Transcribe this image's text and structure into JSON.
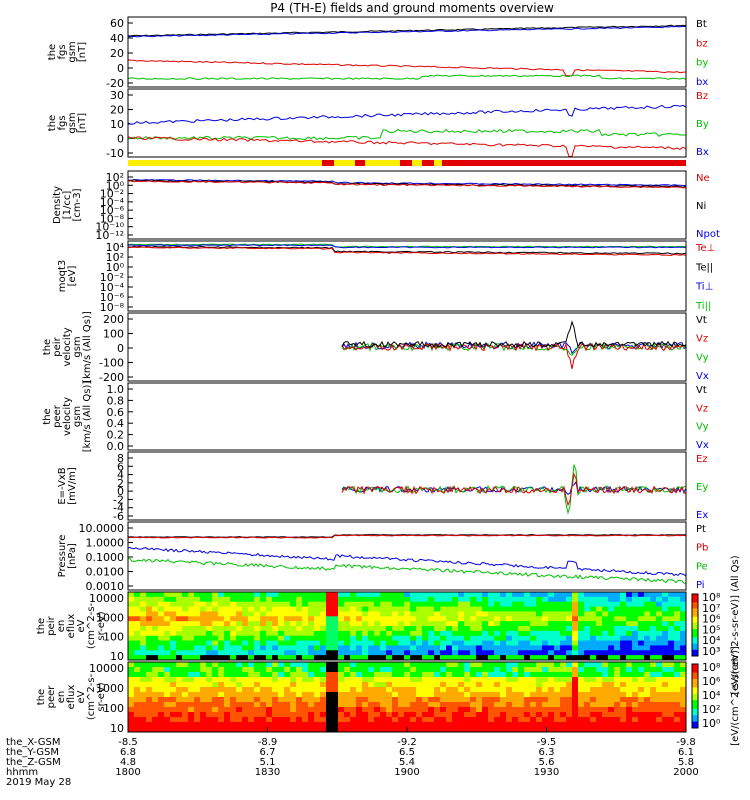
{
  "title": "P4 (TH-E) fields and ground moments overview",
  "chart_data": {
    "type": "line",
    "x_time": [
      "1800",
      "1830",
      "1900",
      "1930",
      "2000"
    ],
    "date": "2019 May 28",
    "ephem": {
      "labels": [
        "the_X-GSM",
        "the_Y-GSM",
        "the_Z-GSM",
        "hhmm"
      ],
      "X": [
        "-8.5",
        "-8.9",
        "-9.2",
        "-9.5",
        "-9.8"
      ],
      "Y": [
        "6.8",
        "6.7",
        "6.5",
        "6.3",
        "6.1"
      ],
      "Z": [
        "4.8",
        "5.1",
        "5.4",
        "5.6",
        "5.8"
      ]
    },
    "panels": [
      {
        "id": "fgs-gsm",
        "ylabel": [
          "the",
          "fgs",
          "gsm",
          "[nT]"
        ],
        "yticks": [
          "60",
          "40",
          "20",
          "0",
          "-20"
        ],
        "legend": [
          {
            "t": "Bt",
            "c": "#000000"
          },
          {
            "t": "bz",
            "c": "#e00000"
          },
          {
            "t": "by",
            "c": "#00c000"
          },
          {
            "t": "bx",
            "c": "#0000e0"
          }
        ]
      },
      {
        "id": "fgs-gse",
        "ylabel": [
          "the",
          "fgs",
          "gsm",
          "[nT]"
        ],
        "yticks": [
          "30",
          "20",
          "10",
          "0",
          "-10"
        ],
        "legend": [
          {
            "t": "Bz",
            "c": "#e00000"
          },
          {
            "t": "By",
            "c": "#00c000"
          },
          {
            "t": "Bx",
            "c": "#0000e0"
          }
        ]
      },
      {
        "id": "density",
        "ylabel": [
          "Density",
          "[1/cc]",
          "[cm-3]"
        ],
        "yticks": [
          "10²",
          "10⁰",
          "10⁻²",
          "10⁻⁴",
          "10⁻⁶",
          "10⁻⁸",
          "10⁻¹⁰",
          "10⁻¹²"
        ],
        "legend": [
          {
            "t": "Ne",
            "c": "#e00000"
          },
          {
            "t": "Ni",
            "c": "#000000"
          },
          {
            "t": "Npot",
            "c": "#0000e0"
          }
        ]
      },
      {
        "id": "temperature",
        "ylabel": [
          "moqt3",
          "[eV]"
        ],
        "yticks": [
          "10⁴",
          "10²",
          "10⁰",
          "10⁻²",
          "10⁻⁴",
          "10⁻⁶",
          "10⁻⁸"
        ],
        "legend": [
          {
            "t": "Te⊥",
            "c": "#e00000"
          },
          {
            "t": "Te||",
            "c": "#000000"
          },
          {
            "t": "Ti⊥",
            "c": "#0000e0"
          },
          {
            "t": "Ti||",
            "c": "#00c000"
          }
        ]
      },
      {
        "id": "peir-vel",
        "ylabel": [
          "the",
          "peir",
          "velocity",
          "gsm",
          "[km/s (All Qs)]"
        ],
        "yticks": [
          "200",
          "100",
          "0",
          "-100",
          "-200"
        ],
        "legend": [
          {
            "t": "Vt",
            "c": "#000000"
          },
          {
            "t": "Vz",
            "c": "#e00000"
          },
          {
            "t": "Vy",
            "c": "#00c000"
          },
          {
            "t": "Vx",
            "c": "#0000e0"
          }
        ]
      },
      {
        "id": "peer-vel",
        "ylabel": [
          "the",
          "peer",
          "velocity",
          "gsm",
          "[km/s (All Qs)]"
        ],
        "yticks": [
          "1.0",
          "0.8",
          "0.6",
          "0.4",
          "0.2",
          "0.0"
        ],
        "legend": [
          {
            "t": "Vt",
            "c": "#000000"
          },
          {
            "t": "Vz",
            "c": "#e00000"
          },
          {
            "t": "Vy",
            "c": "#00c000"
          },
          {
            "t": "Vx",
            "c": "#0000e0"
          }
        ]
      },
      {
        "id": "efield",
        "ylabel": [
          "E=-VxB",
          "[mV/m]"
        ],
        "yticks": [
          "8",
          "6",
          "4",
          "2",
          "0",
          "-2",
          "-4",
          "-6"
        ],
        "legend": [
          {
            "t": "Ez",
            "c": "#e00000"
          },
          {
            "t": "Ey",
            "c": "#00c000"
          },
          {
            "t": "Ex",
            "c": "#0000e0"
          }
        ]
      },
      {
        "id": "pressure",
        "ylabel": [
          "Pressure",
          "[nPa]"
        ],
        "yticks": [
          "10.0000",
          "1.0000",
          "0.1000",
          "0.0100",
          "0.0010"
        ],
        "legend": [
          {
            "t": "Pt",
            "c": "#000000"
          },
          {
            "t": "Pb",
            "c": "#e00000"
          },
          {
            "t": "Pe",
            "c": "#00c000"
          },
          {
            "t": "Pi",
            "c": "#0000e0"
          }
        ]
      },
      {
        "id": "peir-eflux",
        "ylabel": [
          "the",
          "peir",
          "en",
          "eflux",
          "eV",
          "(cm^2-s-",
          "sr-eV)"
        ],
        "yticks": [
          "10000",
          "1000",
          "100",
          "10"
        ],
        "colorbar_ticks": [
          "10⁸",
          "10⁷",
          "10⁶",
          "10⁵",
          "10⁴",
          "10³"
        ],
        "colorbar_label": "[eV/(cm^2-s-sr-eV)] (All Qs)"
      },
      {
        "id": "peer-eflux",
        "ylabel": [
          "the",
          "peer",
          "en",
          "eflux",
          "eV",
          "(cm^2-s-",
          "sr-eV)"
        ],
        "yticks": [
          "10000",
          "1000",
          "100",
          "10"
        ],
        "colorbar_ticks": [
          "10⁸",
          "10⁶",
          "10⁴",
          "10²",
          "10⁰"
        ],
        "colorbar_label": "[eV/(cm^2-s-sr-eV)]"
      }
    ]
  }
}
